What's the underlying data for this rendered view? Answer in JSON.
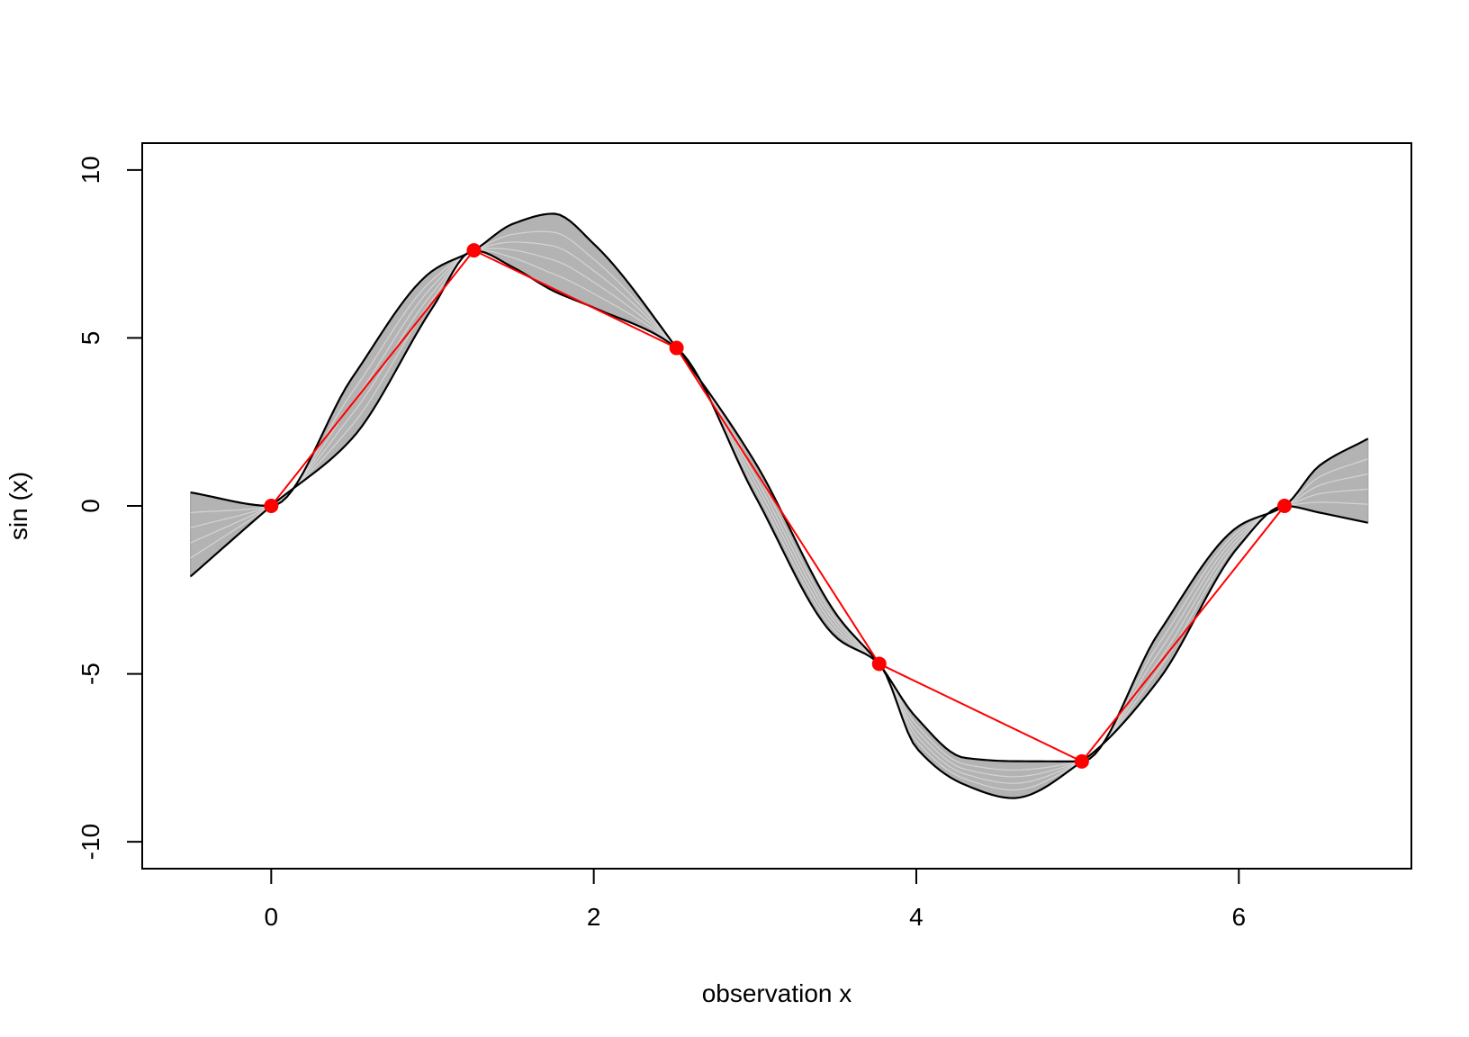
{
  "chart_data": {
    "type": "line",
    "title": "",
    "xlabel": "observation x",
    "ylabel": "sin (x)",
    "xlim": [
      -0.8,
      7.07
    ],
    "ylim": [
      -10.8,
      10.8
    ],
    "x_ticks": [
      0,
      2,
      4,
      6
    ],
    "x_tick_labels": [
      "0",
      "2",
      "4",
      "6"
    ],
    "y_ticks": [
      -10,
      -5,
      0,
      5,
      10
    ],
    "y_tick_labels": [
      "-10",
      "-5",
      "0",
      "5",
      "10"
    ],
    "grid": false,
    "legend": "none",
    "observations": {
      "x": [
        0,
        1.2566,
        2.5133,
        3.7699,
        5.0265,
        6.2832
      ],
      "y": [
        0,
        7.608,
        4.702,
        -4.702,
        -7.608,
        0
      ]
    },
    "band": {
      "x": [
        -0.5,
        0,
        0.5,
        1.0,
        1.2566,
        1.5,
        1.75,
        2.0,
        2.5133,
        3.0,
        3.5,
        3.7699,
        4.0,
        4.3,
        4.6,
        5.0265,
        5.5,
        6.0,
        6.2832,
        6.5,
        6.8
      ],
      "upper": [
        0.4,
        0,
        3.8,
        7.0,
        7.608,
        8.4,
        8.7,
        7.8,
        4.702,
        1.3,
        -3.2,
        -4.702,
        -6.3,
        -7.5,
        -7.6,
        -7.608,
        -3.8,
        -0.6,
        0,
        1.2,
        2.0
      ],
      "lower": [
        -2.1,
        0,
        2.0,
        5.9,
        7.608,
        7.1,
        6.4,
        5.9,
        4.702,
        0.3,
        -3.9,
        -4.702,
        -7.2,
        -8.3,
        -8.7,
        -7.608,
        -5.2,
        -1.2,
        0,
        -0.2,
        -0.5
      ]
    },
    "colors": {
      "band": "#b3b3b3",
      "band_lines": "#e2e2e2",
      "bound_lines": "#000000",
      "observations": "#ff0000",
      "axes": "#000000"
    }
  }
}
